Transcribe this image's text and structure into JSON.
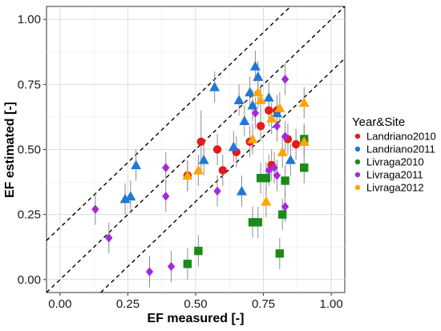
{
  "chart_data": {
    "type": "scatter",
    "xlabel": "EF measured [-]",
    "ylabel": "EF estimated [-]",
    "xlim": [
      -0.05,
      1.05
    ],
    "ylim": [
      -0.05,
      1.05
    ],
    "xticks": [
      0.0,
      0.25,
      0.5,
      0.75,
      1.0
    ],
    "yticks": [
      0.0,
      0.25,
      0.5,
      0.75,
      1.0
    ],
    "xtick_labels": [
      "0.00",
      "0.25",
      "0.50",
      "0.75",
      "1.00"
    ],
    "ytick_labels": [
      "0.00",
      "0.25",
      "0.50",
      "0.75",
      "1.00"
    ],
    "grid": true,
    "reference_lines": [
      {
        "style": "dashed",
        "intercept": 0.2,
        "slope": 1
      },
      {
        "style": "dashed",
        "intercept": 0.0,
        "slope": 1
      },
      {
        "style": "dashed",
        "intercept": -0.2,
        "slope": 1
      }
    ],
    "legend": {
      "title": "Year&Site",
      "placement": "right",
      "entries": [
        "Landriano2010",
        "Landriano2011",
        "Livraga2010",
        "Livraga2011",
        "Livraga2012"
      ]
    },
    "series": [
      {
        "name": "Landriano2010",
        "color": "#e41a1c",
        "marker": "circle",
        "points": [
          {
            "x": 0.47,
            "y": 0.4,
            "xerr": [
              0.0,
              0.0
            ],
            "yerr": [
              0.06,
              0.06
            ]
          },
          {
            "x": 0.52,
            "y": 0.53,
            "xerr": [
              0.0,
              0.0
            ],
            "yerr": [
              0.12,
              0.12
            ]
          },
          {
            "x": 0.58,
            "y": 0.5,
            "xerr": [
              0.0,
              0.0
            ],
            "yerr": [
              0.06,
              0.06
            ]
          },
          {
            "x": 0.6,
            "y": 0.42,
            "xerr": [
              0.0,
              0.0
            ],
            "yerr": [
              0.06,
              0.06
            ]
          },
          {
            "x": 0.65,
            "y": 0.49,
            "xerr": [
              0.0,
              0.0
            ],
            "yerr": [
              0.06,
              0.06
            ]
          },
          {
            "x": 0.7,
            "y": 0.53,
            "xerr": [
              0.0,
              0.0
            ],
            "yerr": [
              0.06,
              0.06
            ]
          },
          {
            "x": 0.74,
            "y": 0.59,
            "xerr": [
              0.0,
              0.0
            ],
            "yerr": [
              0.06,
              0.06
            ]
          },
          {
            "x": 0.77,
            "y": 0.65,
            "xerr": [
              0.0,
              0.0
            ],
            "yerr": [
              0.06,
              0.06
            ]
          },
          {
            "x": 0.78,
            "y": 0.44,
            "xerr": [
              0.0,
              0.0
            ],
            "yerr": [
              0.06,
              0.06
            ]
          },
          {
            "x": 0.8,
            "y": 0.65,
            "xerr": [
              0.0,
              0.0
            ],
            "yerr": [
              0.06,
              0.06
            ]
          },
          {
            "x": 0.84,
            "y": 0.54,
            "xerr": [
              0.0,
              0.0
            ],
            "yerr": [
              0.06,
              0.06
            ]
          },
          {
            "x": 0.87,
            "y": 0.52,
            "xerr": [
              0.0,
              0.0
            ],
            "yerr": [
              0.06,
              0.06
            ]
          }
        ]
      },
      {
        "name": "Landriano2011",
        "color": "#1f78d4",
        "marker": "triangle",
        "points": [
          {
            "x": 0.24,
            "y": 0.31,
            "xerr": [
              0.0,
              0.0
            ],
            "yerr": [
              0.06,
              0.06
            ]
          },
          {
            "x": 0.28,
            "y": 0.44,
            "xerr": [
              0.0,
              0.0
            ],
            "yerr": [
              0.06,
              0.06
            ]
          },
          {
            "x": 0.26,
            "y": 0.32,
            "xerr": [
              0.0,
              0.0
            ],
            "yerr": [
              0.06,
              0.06
            ]
          },
          {
            "x": 0.53,
            "y": 0.46,
            "xerr": [
              0.0,
              0.0
            ],
            "yerr": [
              0.06,
              0.06
            ]
          },
          {
            "x": 0.57,
            "y": 0.74,
            "xerr": [
              0.0,
              0.0
            ],
            "yerr": [
              0.06,
              0.06
            ]
          },
          {
            "x": 0.64,
            "y": 0.51,
            "xerr": [
              0.0,
              0.0
            ],
            "yerr": [
              0.06,
              0.06
            ]
          },
          {
            "x": 0.66,
            "y": 0.69,
            "xerr": [
              0.0,
              0.0
            ],
            "yerr": [
              0.06,
              0.06
            ]
          },
          {
            "x": 0.67,
            "y": 0.34,
            "xerr": [
              0.0,
              0.0
            ],
            "yerr": [
              0.06,
              0.06
            ]
          },
          {
            "x": 0.68,
            "y": 0.61,
            "xerr": [
              0.0,
              0.0
            ],
            "yerr": [
              0.06,
              0.06
            ]
          },
          {
            "x": 0.7,
            "y": 0.72,
            "xerr": [
              0.0,
              0.0
            ],
            "yerr": [
              0.06,
              0.06
            ]
          },
          {
            "x": 0.71,
            "y": 0.67,
            "xerr": [
              0.0,
              0.0
            ],
            "yerr": [
              0.06,
              0.06
            ]
          },
          {
            "x": 0.72,
            "y": 0.82,
            "xerr": [
              0.0,
              0.0
            ],
            "yerr": [
              0.06,
              0.06
            ]
          },
          {
            "x": 0.73,
            "y": 0.78,
            "xerr": [
              0.0,
              0.0
            ],
            "yerr": [
              0.06,
              0.06
            ]
          },
          {
            "x": 0.77,
            "y": 0.7,
            "xerr": [
              0.0,
              0.0
            ],
            "yerr": [
              0.06,
              0.06
            ]
          },
          {
            "x": 0.8,
            "y": 0.64,
            "xerr": [
              0.0,
              0.0
            ],
            "yerr": [
              0.06,
              0.06
            ]
          },
          {
            "x": 0.85,
            "y": 0.46,
            "xerr": [
              0.0,
              0.0
            ],
            "yerr": [
              0.06,
              0.06
            ]
          }
        ]
      },
      {
        "name": "Livraga2010",
        "color": "#1a8a1a",
        "marker": "square",
        "points": [
          {
            "x": 0.47,
            "y": 0.06,
            "xerr": [
              0.0,
              0.0
            ],
            "yerr": [
              0.06,
              0.06
            ]
          },
          {
            "x": 0.51,
            "y": 0.11,
            "xerr": [
              0.0,
              0.0
            ],
            "yerr": [
              0.06,
              0.06
            ]
          },
          {
            "x": 0.71,
            "y": 0.22,
            "xerr": [
              0.0,
              0.0
            ],
            "yerr": [
              0.06,
              0.06
            ]
          },
          {
            "x": 0.73,
            "y": 0.22,
            "xerr": [
              0.0,
              0.0
            ],
            "yerr": [
              0.06,
              0.06
            ]
          },
          {
            "x": 0.74,
            "y": 0.39,
            "xerr": [
              0.0,
              0.0
            ],
            "yerr": [
              0.06,
              0.06
            ]
          },
          {
            "x": 0.76,
            "y": 0.39,
            "xerr": [
              0.0,
              0.0
            ],
            "yerr": [
              0.06,
              0.06
            ]
          },
          {
            "x": 0.81,
            "y": 0.1,
            "xerr": [
              0.0,
              0.0
            ],
            "yerr": [
              0.06,
              0.06
            ]
          },
          {
            "x": 0.82,
            "y": 0.25,
            "xerr": [
              0.0,
              0.0
            ],
            "yerr": [
              0.06,
              0.06
            ]
          },
          {
            "x": 0.83,
            "y": 0.38,
            "xerr": [
              0.0,
              0.0
            ],
            "yerr": [
              0.06,
              0.06
            ]
          },
          {
            "x": 0.9,
            "y": 0.43,
            "xerr": [
              0.0,
              0.0
            ],
            "yerr": [
              0.06,
              0.06
            ]
          },
          {
            "x": 0.9,
            "y": 0.54,
            "xerr": [
              0.0,
              0.0
            ],
            "yerr": [
              0.06,
              0.06
            ]
          }
        ]
      },
      {
        "name": "Livraga2011",
        "color": "#a52ad8",
        "marker": "diamond",
        "points": [
          {
            "x": 0.13,
            "y": 0.27,
            "xerr": [
              0.0,
              0.0
            ],
            "yerr": [
              0.06,
              0.06
            ]
          },
          {
            "x": 0.18,
            "y": 0.16,
            "xerr": [
              0.0,
              0.0
            ],
            "yerr": [
              0.06,
              0.06
            ]
          },
          {
            "x": 0.33,
            "y": 0.03,
            "xerr": [
              0.0,
              0.0
            ],
            "yerr": [
              0.06,
              0.06
            ]
          },
          {
            "x": 0.39,
            "y": 0.43,
            "xerr": [
              0.0,
              0.0
            ],
            "yerr": [
              0.06,
              0.06
            ]
          },
          {
            "x": 0.39,
            "y": 0.32,
            "xerr": [
              0.0,
              0.0
            ],
            "yerr": [
              0.06,
              0.06
            ]
          },
          {
            "x": 0.41,
            "y": 0.05,
            "xerr": [
              0.0,
              0.0
            ],
            "yerr": [
              0.06,
              0.06
            ]
          },
          {
            "x": 0.58,
            "y": 0.34,
            "xerr": [
              0.0,
              0.0
            ],
            "yerr": [
              0.06,
              0.06
            ]
          },
          {
            "x": 0.72,
            "y": 0.64,
            "xerr": [
              0.0,
              0.0
            ],
            "yerr": [
              0.06,
              0.06
            ]
          },
          {
            "x": 0.77,
            "y": 0.42,
            "xerr": [
              0.0,
              0.0
            ],
            "yerr": [
              0.06,
              0.06
            ]
          },
          {
            "x": 0.79,
            "y": 0.43,
            "xerr": [
              0.0,
              0.0
            ],
            "yerr": [
              0.06,
              0.06
            ]
          },
          {
            "x": 0.8,
            "y": 0.59,
            "xerr": [
              0.0,
              0.0
            ],
            "yerr": [
              0.06,
              0.06
            ]
          },
          {
            "x": 0.8,
            "y": 0.4,
            "xerr": [
              0.0,
              0.0
            ],
            "yerr": [
              0.06,
              0.06
            ]
          },
          {
            "x": 0.83,
            "y": 0.77,
            "xerr": [
              0.0,
              0.0
            ],
            "yerr": [
              0.06,
              0.06
            ]
          },
          {
            "x": 0.83,
            "y": 0.55,
            "xerr": [
              0.0,
              0.0
            ],
            "yerr": [
              0.06,
              0.06
            ]
          },
          {
            "x": 0.83,
            "y": 0.28,
            "xerr": [
              0.0,
              0.0
            ],
            "yerr": [
              0.06,
              0.06
            ]
          }
        ]
      },
      {
        "name": "Livraga2012",
        "color": "#ffa500",
        "marker": "triangle",
        "points": [
          {
            "x": 0.47,
            "y": 0.4,
            "xerr": [
              0.0,
              0.0
            ],
            "yerr": [
              0.06,
              0.06
            ]
          },
          {
            "x": 0.51,
            "y": 0.42,
            "xerr": [
              0.0,
              0.0
            ],
            "yerr": [
              0.06,
              0.06
            ]
          },
          {
            "x": 0.71,
            "y": 0.54,
            "xerr": [
              0.0,
              0.0
            ],
            "yerr": [
              0.06,
              0.06
            ]
          },
          {
            "x": 0.73,
            "y": 0.72,
            "xerr": [
              0.0,
              0.0
            ],
            "yerr": [
              0.06,
              0.06
            ]
          },
          {
            "x": 0.74,
            "y": 0.69,
            "xerr": [
              0.0,
              0.0
            ],
            "yerr": [
              0.06,
              0.06
            ]
          },
          {
            "x": 0.76,
            "y": 0.3,
            "xerr": [
              0.0,
              0.0
            ],
            "yerr": [
              0.06,
              0.06
            ]
          },
          {
            "x": 0.78,
            "y": 0.62,
            "xerr": [
              0.0,
              0.0
            ],
            "yerr": [
              0.06,
              0.06
            ]
          },
          {
            "x": 0.81,
            "y": 0.66,
            "xerr": [
              0.0,
              0.0
            ],
            "yerr": [
              0.06,
              0.06
            ]
          },
          {
            "x": 0.82,
            "y": 0.49,
            "xerr": [
              0.0,
              0.0
            ],
            "yerr": [
              0.06,
              0.06
            ]
          },
          {
            "x": 0.9,
            "y": 0.68,
            "xerr": [
              0.0,
              0.0
            ],
            "yerr": [
              0.06,
              0.06
            ]
          },
          {
            "x": 0.9,
            "y": 0.53,
            "xerr": [
              0.0,
              0.0
            ],
            "yerr": [
              0.06,
              0.06
            ]
          }
        ]
      }
    ]
  }
}
